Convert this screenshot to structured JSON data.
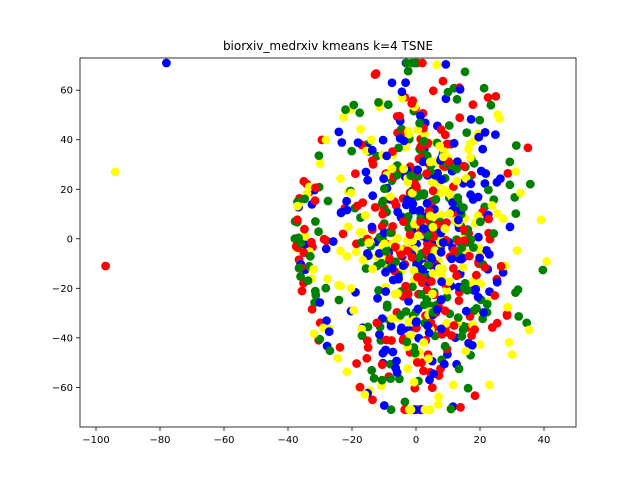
{
  "chart_data": {
    "type": "scatter",
    "title": "biorxiv_medrxiv kmeans k=4 TSNE",
    "xlabel": "",
    "ylabel": "",
    "xlim": [
      -105,
      50
    ],
    "ylim": [
      -76,
      73
    ],
    "xticks": [
      -100,
      -80,
      -60,
      -40,
      -20,
      0,
      20,
      40
    ],
    "yticks": [
      -60,
      -40,
      -20,
      0,
      20,
      40,
      60
    ],
    "grid": false,
    "legend": "none",
    "colors": {
      "blue": "#0000ff",
      "green": "#008000",
      "red": "#ff0000",
      "yellow": "#ffff00"
    },
    "outliers": [
      {
        "x": -78,
        "y": 71,
        "color": "blue"
      },
      {
        "x": -94,
        "y": 27,
        "color": "yellow"
      },
      {
        "x": -97,
        "y": -11,
        "color": "red"
      }
    ],
    "cluster": {
      "description_points": "dense mixed cluster",
      "x_range": [
        -47,
        43
      ],
      "y_range": [
        -69,
        71
      ],
      "count_per_color": 220,
      "color_order": [
        "blue",
        "green",
        "red",
        "yellow"
      ]
    }
  }
}
